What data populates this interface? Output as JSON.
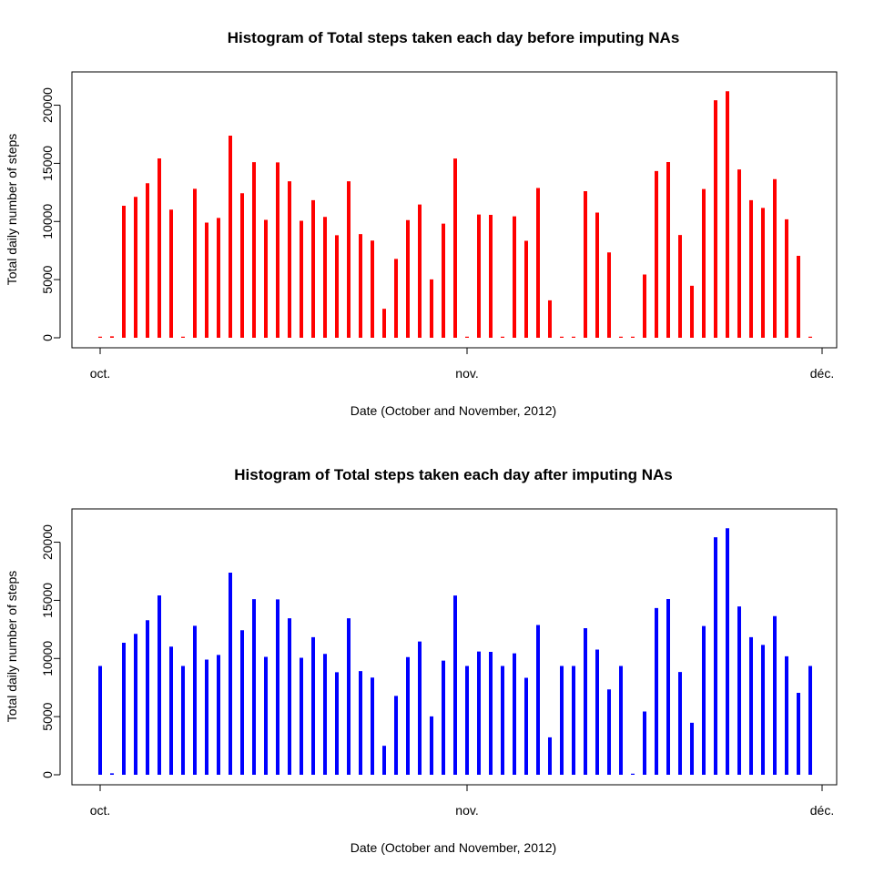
{
  "charts": [
    {
      "title": "Histogram of Total steps taken each day before imputing NAs",
      "xlabel": "Date (October and November, 2012)",
      "ylabel": "Total daily number of steps",
      "color": "#ff0000"
    },
    {
      "title": "Histogram of Total steps taken each day after imputing NAs",
      "xlabel": "Date (October and November, 2012)",
      "ylabel": "Total daily number of steps",
      "color": "#0000ff"
    }
  ],
  "chart_data": [
    {
      "type": "bar",
      "title": "Histogram of Total steps taken each day before imputing NAs",
      "xlabel": "Date (October and November, 2012)",
      "ylabel": "Total daily number of steps",
      "x_start": "2012-10-01",
      "x_ticks": [
        {
          "date": "2012-10-01",
          "label": "oct."
        },
        {
          "date": "2012-11-01",
          "label": "nov."
        },
        {
          "date": "2012-12-01",
          "label": "déc."
        }
      ],
      "y_ticks": [
        0,
        5000,
        10000,
        15000,
        20000
      ],
      "ylim": [
        0,
        22000
      ],
      "dates": [
        "2012-10-01",
        "2012-10-02",
        "2012-10-03",
        "2012-10-04",
        "2012-10-05",
        "2012-10-06",
        "2012-10-07",
        "2012-10-08",
        "2012-10-09",
        "2012-10-10",
        "2012-10-11",
        "2012-10-12",
        "2012-10-13",
        "2012-10-14",
        "2012-10-15",
        "2012-10-16",
        "2012-10-17",
        "2012-10-18",
        "2012-10-19",
        "2012-10-20",
        "2012-10-21",
        "2012-10-22",
        "2012-10-23",
        "2012-10-24",
        "2012-10-25",
        "2012-10-26",
        "2012-10-27",
        "2012-10-28",
        "2012-10-29",
        "2012-10-30",
        "2012-10-31",
        "2012-11-01",
        "2012-11-02",
        "2012-11-03",
        "2012-11-04",
        "2012-11-05",
        "2012-11-06",
        "2012-11-07",
        "2012-11-08",
        "2012-11-09",
        "2012-11-10",
        "2012-11-11",
        "2012-11-12",
        "2012-11-13",
        "2012-11-14",
        "2012-11-15",
        "2012-11-16",
        "2012-11-17",
        "2012-11-18",
        "2012-11-19",
        "2012-11-20",
        "2012-11-21",
        "2012-11-22",
        "2012-11-23",
        "2012-11-24",
        "2012-11-25",
        "2012-11-26",
        "2012-11-27",
        "2012-11-28",
        "2012-11-29",
        "2012-11-30"
      ],
      "values": [
        0,
        126,
        11352,
        12116,
        13294,
        15420,
        11015,
        0,
        12811,
        9900,
        10304,
        17382,
        12426,
        15098,
        10139,
        15084,
        13452,
        10056,
        11829,
        10395,
        8821,
        13460,
        8918,
        8355,
        2492,
        6778,
        10119,
        11458,
        5018,
        9819,
        15414,
        0,
        10600,
        10571,
        0,
        10439,
        8334,
        12883,
        3219,
        0,
        0,
        12608,
        10765,
        7336,
        0,
        41,
        5441,
        14339,
        15110,
        8841,
        4472,
        12787,
        20427,
        21194,
        14478,
        11834,
        11162,
        13646,
        10183,
        7047,
        0
      ]
    },
    {
      "type": "bar",
      "title": "Histogram of Total steps taken each day after imputing NAs",
      "xlabel": "Date (October and November, 2012)",
      "ylabel": "Total daily number of steps",
      "x_start": "2012-10-01",
      "x_ticks": [
        {
          "date": "2012-10-01",
          "label": "oct."
        },
        {
          "date": "2012-11-01",
          "label": "nov."
        },
        {
          "date": "2012-12-01",
          "label": "déc."
        }
      ],
      "y_ticks": [
        0,
        5000,
        10000,
        15000,
        20000
      ],
      "ylim": [
        0,
        22000
      ],
      "dates": [
        "2012-10-01",
        "2012-10-02",
        "2012-10-03",
        "2012-10-04",
        "2012-10-05",
        "2012-10-06",
        "2012-10-07",
        "2012-10-08",
        "2012-10-09",
        "2012-10-10",
        "2012-10-11",
        "2012-10-12",
        "2012-10-13",
        "2012-10-14",
        "2012-10-15",
        "2012-10-16",
        "2012-10-17",
        "2012-10-18",
        "2012-10-19",
        "2012-10-20",
        "2012-10-21",
        "2012-10-22",
        "2012-10-23",
        "2012-10-24",
        "2012-10-25",
        "2012-10-26",
        "2012-10-27",
        "2012-10-28",
        "2012-10-29",
        "2012-10-30",
        "2012-10-31",
        "2012-11-01",
        "2012-11-02",
        "2012-11-03",
        "2012-11-04",
        "2012-11-05",
        "2012-11-06",
        "2012-11-07",
        "2012-11-08",
        "2012-11-09",
        "2012-11-10",
        "2012-11-11",
        "2012-11-12",
        "2012-11-13",
        "2012-11-14",
        "2012-11-15",
        "2012-11-16",
        "2012-11-17",
        "2012-11-18",
        "2012-11-19",
        "2012-11-20",
        "2012-11-21",
        "2012-11-22",
        "2012-11-23",
        "2012-11-24",
        "2012-11-25",
        "2012-11-26",
        "2012-11-27",
        "2012-11-28",
        "2012-11-29",
        "2012-11-30"
      ],
      "values": [
        9354,
        126,
        11352,
        12116,
        13294,
        15420,
        11015,
        9354,
        12811,
        9900,
        10304,
        17382,
        12426,
        15098,
        10139,
        15084,
        13452,
        10056,
        11829,
        10395,
        8821,
        13460,
        8918,
        8355,
        2492,
        6778,
        10119,
        11458,
        5018,
        9819,
        15414,
        9354,
        10600,
        10571,
        9354,
        10439,
        8334,
        12883,
        3219,
        9354,
        9354,
        12608,
        10765,
        7336,
        9354,
        41,
        5441,
        14339,
        15110,
        8841,
        4472,
        12787,
        20427,
        21194,
        14478,
        11834,
        11162,
        13646,
        10183,
        7047,
        9354
      ]
    }
  ]
}
